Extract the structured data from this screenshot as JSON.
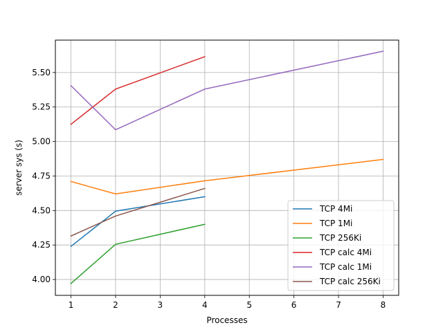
{
  "chart_data": {
    "type": "line",
    "title": "",
    "xlabel": "Processes",
    "ylabel": "server sys (s)",
    "xlim": [
      0.65,
      8.35
    ],
    "ylim": [
      3.885,
      5.735
    ],
    "xticks": [
      1,
      2,
      3,
      4,
      5,
      6,
      7,
      8
    ],
    "yticks": [
      4.0,
      4.25,
      4.5,
      4.75,
      5.0,
      5.25,
      5.5
    ],
    "ytick_labels": [
      "4.00",
      "4.25",
      "4.50",
      "4.75",
      "5.00",
      "5.25",
      "5.50"
    ],
    "grid": true,
    "legend_position": "lower-right",
    "series": [
      {
        "name": "TCP 4Mi",
        "color": "#1f77b4",
        "x": [
          1,
          2,
          4
        ],
        "y": [
          4.24,
          4.495,
          4.6
        ]
      },
      {
        "name": "TCP 1Mi",
        "color": "#ff7f0e",
        "x": [
          1,
          2,
          4,
          8
        ],
        "y": [
          4.71,
          4.62,
          4.715,
          4.87
        ]
      },
      {
        "name": "TCP 256Ki",
        "color": "#2ca02c",
        "x": [
          1,
          2,
          4
        ],
        "y": [
          3.97,
          4.255,
          4.4
        ]
      },
      {
        "name": "TCP calc 4Mi",
        "color": "#d62728",
        "x": [
          1,
          2,
          4
        ],
        "y": [
          5.125,
          5.38,
          5.615
        ]
      },
      {
        "name": "TCP calc 1Mi",
        "color": "#9467bd",
        "x": [
          1,
          2,
          4,
          8
        ],
        "y": [
          5.405,
          5.085,
          5.38,
          5.655
        ]
      },
      {
        "name": "TCP calc 256Ki",
        "color": "#8c564b",
        "x": [
          1,
          2,
          4
        ],
        "y": [
          4.315,
          4.46,
          4.66
        ]
      }
    ]
  }
}
